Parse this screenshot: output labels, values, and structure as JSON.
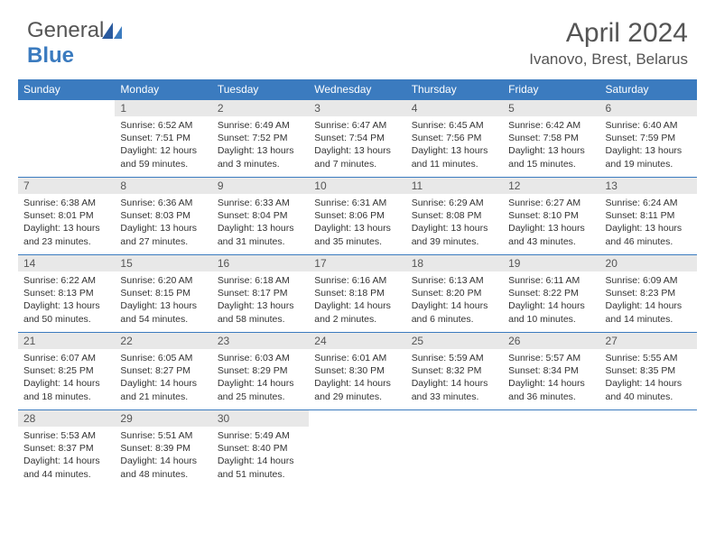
{
  "brand": {
    "part1": "General",
    "part2": "Blue"
  },
  "title": "April 2024",
  "location": "Ivanovo, Brest, Belarus",
  "weekdays": [
    "Sunday",
    "Monday",
    "Tuesday",
    "Wednesday",
    "Thursday",
    "Friday",
    "Saturday"
  ],
  "colors": {
    "header_bg": "#3b7bbf",
    "header_text": "#ffffff",
    "daynum_bg": "#e8e8e8",
    "text": "#333333",
    "title_text": "#555555"
  },
  "first_day_offset": 1,
  "days": [
    {
      "n": 1,
      "sunrise": "6:52 AM",
      "sunset": "7:51 PM",
      "daylight": "12 hours and 59 minutes."
    },
    {
      "n": 2,
      "sunrise": "6:49 AM",
      "sunset": "7:52 PM",
      "daylight": "13 hours and 3 minutes."
    },
    {
      "n": 3,
      "sunrise": "6:47 AM",
      "sunset": "7:54 PM",
      "daylight": "13 hours and 7 minutes."
    },
    {
      "n": 4,
      "sunrise": "6:45 AM",
      "sunset": "7:56 PM",
      "daylight": "13 hours and 11 minutes."
    },
    {
      "n": 5,
      "sunrise": "6:42 AM",
      "sunset": "7:58 PM",
      "daylight": "13 hours and 15 minutes."
    },
    {
      "n": 6,
      "sunrise": "6:40 AM",
      "sunset": "7:59 PM",
      "daylight": "13 hours and 19 minutes."
    },
    {
      "n": 7,
      "sunrise": "6:38 AM",
      "sunset": "8:01 PM",
      "daylight": "13 hours and 23 minutes."
    },
    {
      "n": 8,
      "sunrise": "6:36 AM",
      "sunset": "8:03 PM",
      "daylight": "13 hours and 27 minutes."
    },
    {
      "n": 9,
      "sunrise": "6:33 AM",
      "sunset": "8:04 PM",
      "daylight": "13 hours and 31 minutes."
    },
    {
      "n": 10,
      "sunrise": "6:31 AM",
      "sunset": "8:06 PM",
      "daylight": "13 hours and 35 minutes."
    },
    {
      "n": 11,
      "sunrise": "6:29 AM",
      "sunset": "8:08 PM",
      "daylight": "13 hours and 39 minutes."
    },
    {
      "n": 12,
      "sunrise": "6:27 AM",
      "sunset": "8:10 PM",
      "daylight": "13 hours and 43 minutes."
    },
    {
      "n": 13,
      "sunrise": "6:24 AM",
      "sunset": "8:11 PM",
      "daylight": "13 hours and 46 minutes."
    },
    {
      "n": 14,
      "sunrise": "6:22 AM",
      "sunset": "8:13 PM",
      "daylight": "13 hours and 50 minutes."
    },
    {
      "n": 15,
      "sunrise": "6:20 AM",
      "sunset": "8:15 PM",
      "daylight": "13 hours and 54 minutes."
    },
    {
      "n": 16,
      "sunrise": "6:18 AM",
      "sunset": "8:17 PM",
      "daylight": "13 hours and 58 minutes."
    },
    {
      "n": 17,
      "sunrise": "6:16 AM",
      "sunset": "8:18 PM",
      "daylight": "14 hours and 2 minutes."
    },
    {
      "n": 18,
      "sunrise": "6:13 AM",
      "sunset": "8:20 PM",
      "daylight": "14 hours and 6 minutes."
    },
    {
      "n": 19,
      "sunrise": "6:11 AM",
      "sunset": "8:22 PM",
      "daylight": "14 hours and 10 minutes."
    },
    {
      "n": 20,
      "sunrise": "6:09 AM",
      "sunset": "8:23 PM",
      "daylight": "14 hours and 14 minutes."
    },
    {
      "n": 21,
      "sunrise": "6:07 AM",
      "sunset": "8:25 PM",
      "daylight": "14 hours and 18 minutes."
    },
    {
      "n": 22,
      "sunrise": "6:05 AM",
      "sunset": "8:27 PM",
      "daylight": "14 hours and 21 minutes."
    },
    {
      "n": 23,
      "sunrise": "6:03 AM",
      "sunset": "8:29 PM",
      "daylight": "14 hours and 25 minutes."
    },
    {
      "n": 24,
      "sunrise": "6:01 AM",
      "sunset": "8:30 PM",
      "daylight": "14 hours and 29 minutes."
    },
    {
      "n": 25,
      "sunrise": "5:59 AM",
      "sunset": "8:32 PM",
      "daylight": "14 hours and 33 minutes."
    },
    {
      "n": 26,
      "sunrise": "5:57 AM",
      "sunset": "8:34 PM",
      "daylight": "14 hours and 36 minutes."
    },
    {
      "n": 27,
      "sunrise": "5:55 AM",
      "sunset": "8:35 PM",
      "daylight": "14 hours and 40 minutes."
    },
    {
      "n": 28,
      "sunrise": "5:53 AM",
      "sunset": "8:37 PM",
      "daylight": "14 hours and 44 minutes."
    },
    {
      "n": 29,
      "sunrise": "5:51 AM",
      "sunset": "8:39 PM",
      "daylight": "14 hours and 48 minutes."
    },
    {
      "n": 30,
      "sunrise": "5:49 AM",
      "sunset": "8:40 PM",
      "daylight": "14 hours and 51 minutes."
    }
  ]
}
